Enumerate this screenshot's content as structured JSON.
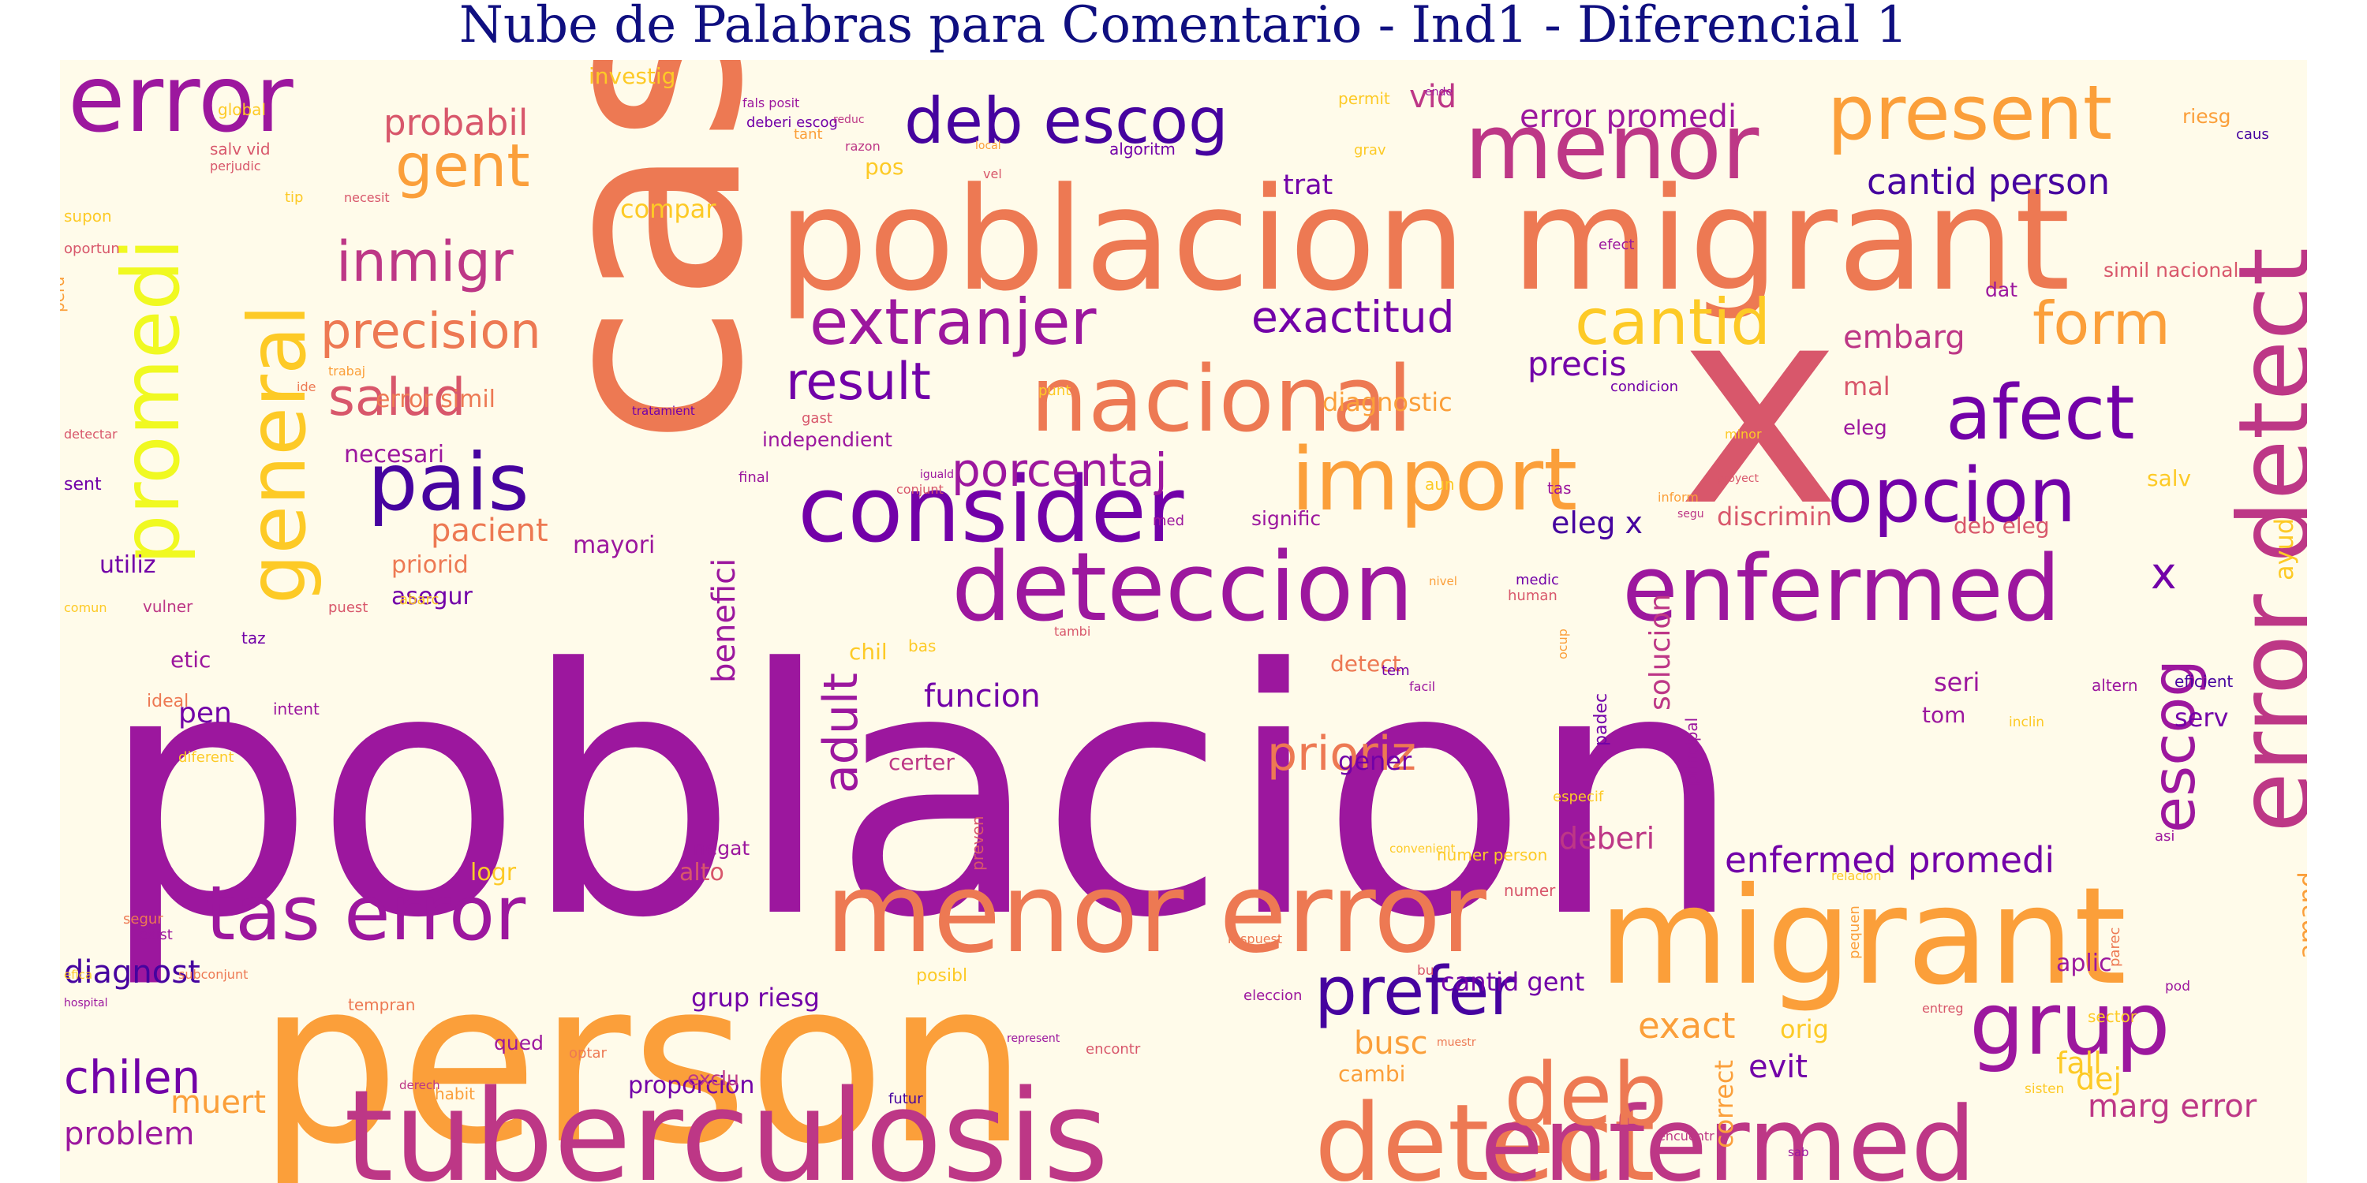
{
  "title": "Nube de Palabras para Comentario - Ind1 - Diferencial 1",
  "chart_data": {
    "type": "wordcloud",
    "palette": [
      "#0d0887",
      "#46039f",
      "#7201a8",
      "#9c179e",
      "#bd3786",
      "#d8576b",
      "#ed7953",
      "#fb9f3a",
      "#fdca26",
      "#f0f921"
    ],
    "background": "#fffbea",
    "words": [
      {
        "text": "poblacion",
        "color": "#9c179e"
      },
      {
        "text": "person",
        "color": "#fb9f3a"
      },
      {
        "text": "cas",
        "color": "#ed7953"
      },
      {
        "text": "poblacion migrant",
        "color": "#ed7953"
      },
      {
        "text": "x",
        "color": "#d8576b"
      },
      {
        "text": "tuberculosis",
        "color": "#bd3786"
      },
      {
        "text": "migrant",
        "color": "#fb9f3a"
      },
      {
        "text": "detect",
        "color": "#ed7953"
      },
      {
        "text": "enfermed",
        "color": "#bd3786"
      },
      {
        "text": "menor error",
        "color": "#ed7953"
      },
      {
        "text": "deteccion",
        "color": "#9c179e"
      },
      {
        "text": "enfermed",
        "color": "#9c179e"
      },
      {
        "text": "error detect",
        "color": "#bd3786"
      },
      {
        "text": "error",
        "color": "#9c179e"
      },
      {
        "text": "nacional",
        "color": "#ed7953"
      },
      {
        "text": "consider",
        "color": "#7201a8"
      },
      {
        "text": "import",
        "color": "#fb9f3a"
      },
      {
        "text": "present",
        "color": "#fb9f3a"
      },
      {
        "text": "menor",
        "color": "#bd3786"
      },
      {
        "text": "promedi",
        "color": "#f0f921"
      },
      {
        "text": "general",
        "color": "#fdca26"
      },
      {
        "text": "grup",
        "color": "#9c179e"
      },
      {
        "text": "deb",
        "color": "#ed7953"
      },
      {
        "text": "tas error",
        "color": "#9c179e"
      },
      {
        "text": "afect",
        "color": "#7201a8"
      },
      {
        "text": "opcion",
        "color": "#7201a8"
      },
      {
        "text": "pais",
        "color": "#46039f"
      },
      {
        "text": "prefer",
        "color": "#46039f"
      },
      {
        "text": "deb escog",
        "color": "#46039f"
      },
      {
        "text": "extranjer",
        "color": "#9c179e"
      },
      {
        "text": "escog",
        "color": "#9c179e"
      },
      {
        "text": "cantid",
        "color": "#fdca26"
      },
      {
        "text": "gent",
        "color": "#fb9f3a"
      },
      {
        "text": "form",
        "color": "#fb9f3a"
      },
      {
        "text": "result",
        "color": "#7201a8"
      },
      {
        "text": "inmigr",
        "color": "#bd3786"
      },
      {
        "text": "salud",
        "color": "#d8576b"
      },
      {
        "text": "precision",
        "color": "#ed7953"
      },
      {
        "text": "exactitud",
        "color": "#7201a8"
      },
      {
        "text": "porcentaj",
        "color": "#9c179e"
      },
      {
        "text": "prioriz",
        "color": "#ed7953"
      },
      {
        "text": "adult",
        "color": "#9c179e"
      },
      {
        "text": "chilen",
        "color": "#7201a8"
      },
      {
        "text": "x",
        "color": "#7201a8"
      },
      {
        "text": "exact",
        "color": "#fb9f3a"
      },
      {
        "text": "diagnost",
        "color": "#46039f"
      },
      {
        "text": "probabil",
        "color": "#d8576b"
      },
      {
        "text": "error promedi",
        "color": "#9c179e"
      },
      {
        "text": "cantid person",
        "color": "#46039f"
      },
      {
        "text": "enfermed promedi",
        "color": "#7201a8"
      },
      {
        "text": "precis",
        "color": "#7201a8"
      },
      {
        "text": "embarg",
        "color": "#bd3786"
      },
      {
        "text": "benefici",
        "color": "#9c179e"
      },
      {
        "text": "funcion",
        "color": "#7201a8"
      },
      {
        "text": "pacient",
        "color": "#ed7953"
      },
      {
        "text": "problem",
        "color": "#9c179e"
      },
      {
        "text": "muert",
        "color": "#fb9f3a"
      },
      {
        "text": "proporcion",
        "color": "#7201a8"
      },
      {
        "text": "busc",
        "color": "#fb9f3a"
      },
      {
        "text": "evit",
        "color": "#7201a8"
      },
      {
        "text": "fall",
        "color": "#fdca26"
      },
      {
        "text": "marg error",
        "color": "#bd3786"
      },
      {
        "text": "dej",
        "color": "#fdca26"
      },
      {
        "text": "grup riesg",
        "color": "#7201a8"
      },
      {
        "text": "cantid gent",
        "color": "#7201a8"
      },
      {
        "text": "deberi",
        "color": "#bd3786"
      },
      {
        "text": "solucion",
        "color": "#bd3786"
      },
      {
        "text": "eleg x",
        "color": "#46039f"
      },
      {
        "text": "discrimin",
        "color": "#d8576b"
      },
      {
        "text": "deb eleg",
        "color": "#d8576b"
      },
      {
        "text": "amand",
        "color": "#fb9f3a"
      },
      {
        "text": "ayud",
        "color": "#fdca26"
      },
      {
        "text": "vid",
        "color": "#bd3786"
      },
      {
        "text": "trat",
        "color": "#7201a8"
      },
      {
        "text": "diagnostic",
        "color": "#fb9f3a"
      },
      {
        "text": "error simil",
        "color": "#ed7953"
      },
      {
        "text": "necesari",
        "color": "#9c179e"
      },
      {
        "text": "mayori",
        "color": "#9c179e"
      },
      {
        "text": "priorid",
        "color": "#ed7953"
      },
      {
        "text": "asegur",
        "color": "#7201a8"
      },
      {
        "text": "utiliz",
        "color": "#7201a8"
      },
      {
        "text": "etic",
        "color": "#9c179e"
      },
      {
        "text": "pen",
        "color": "#7201a8"
      },
      {
        "text": "logr",
        "color": "#fdca26"
      },
      {
        "text": "alto",
        "color": "#d8576b"
      },
      {
        "text": "negat",
        "color": "#9c179e"
      },
      {
        "text": "gener",
        "color": "#7201a8"
      },
      {
        "text": "certer",
        "color": "#bd3786"
      },
      {
        "text": "detect",
        "color": "#ed7953"
      },
      {
        "text": "chil",
        "color": "#fdca26"
      },
      {
        "text": "aplic",
        "color": "#9c179e"
      },
      {
        "text": "seri",
        "color": "#9c179e"
      },
      {
        "text": "tom",
        "color": "#9c179e"
      },
      {
        "text": "serv",
        "color": "#7201a8"
      },
      {
        "text": "cambi",
        "color": "#fb9f3a"
      },
      {
        "text": "correct",
        "color": "#fb9f3a"
      },
      {
        "text": "orig",
        "color": "#fdca26"
      },
      {
        "text": "mal",
        "color": "#d8576b"
      },
      {
        "text": "salv",
        "color": "#fdca26"
      },
      {
        "text": "eleg",
        "color": "#9c179e"
      },
      {
        "text": "compar",
        "color": "#fdca26"
      },
      {
        "text": "investig",
        "color": "#fdca26"
      },
      {
        "text": "pos",
        "color": "#fdca26"
      },
      {
        "text": "riesg",
        "color": "#fb9f3a"
      },
      {
        "text": "simil nacional",
        "color": "#d8576b"
      },
      {
        "text": "dat",
        "color": "#9c179e"
      },
      {
        "text": "independient",
        "color": "#9c179e"
      },
      {
        "text": "condicion",
        "color": "#7201a8"
      },
      {
        "text": "algoritm",
        "color": "#7201a8"
      },
      {
        "text": "permit",
        "color": "#fdca26"
      },
      {
        "text": "grav",
        "color": "#fdca26"
      },
      {
        "text": "signific",
        "color": "#9c179e"
      },
      {
        "text": "efect",
        "color": "#9c179e"
      },
      {
        "text": "salv vid",
        "color": "#d8576b"
      },
      {
        "text": "perjudic",
        "color": "#d8576b"
      },
      {
        "text": "vulner",
        "color": "#bd3786"
      },
      {
        "text": "comun",
        "color": "#fdca26"
      },
      {
        "text": "sent",
        "color": "#7201a8"
      },
      {
        "text": "puest",
        "color": "#d8576b"
      },
      {
        "text": "abarc",
        "color": "#fdca26"
      },
      {
        "text": "taz",
        "color": "#7201a8"
      },
      {
        "text": "padec",
        "color": "#7201a8"
      },
      {
        "text": "principal",
        "color": "#9c179e"
      },
      {
        "text": "human",
        "color": "#d8576b"
      },
      {
        "text": "eficient",
        "color": "#46039f"
      },
      {
        "text": "altern",
        "color": "#9c179e"
      },
      {
        "text": "numer person",
        "color": "#fdca26"
      },
      {
        "text": "especif",
        "color": "#fdca26"
      },
      {
        "text": "tratamient",
        "color": "#7201a8"
      },
      {
        "text": "gast",
        "color": "#d8576b"
      },
      {
        "text": "perd",
        "color": "#fb9f3a"
      },
      {
        "text": "deberi escog",
        "color": "#7201a8"
      },
      {
        "text": "fals posit",
        "color": "#9c179e"
      },
      {
        "text": "caus",
        "color": "#46039f"
      },
      {
        "text": "ende",
        "color": "#9c179e"
      },
      {
        "text": "asi",
        "color": "#9c179e"
      },
      {
        "text": "ocup",
        "color": "#fb9f3a"
      },
      {
        "text": "medic",
        "color": "#7201a8"
      },
      {
        "text": "nivel",
        "color": "#fb9f3a"
      },
      {
        "text": "final",
        "color": "#9c179e"
      },
      {
        "text": "conjunt",
        "color": "#d8576b"
      },
      {
        "text": "iguald",
        "color": "#9c179e"
      },
      {
        "text": "aun",
        "color": "#fdca26"
      },
      {
        "text": "tas",
        "color": "#9c179e"
      },
      {
        "text": "segu",
        "color": "#bd3786"
      },
      {
        "text": "minor",
        "color": "#fdca26"
      },
      {
        "text": "proyect",
        "color": "#d8576b"
      },
      {
        "text": "inform",
        "color": "#fb9f3a"
      },
      {
        "text": "ideal",
        "color": "#ed7953"
      },
      {
        "text": "intent",
        "color": "#9c179e"
      },
      {
        "text": "diferent",
        "color": "#fdca26"
      },
      {
        "text": "segur",
        "color": "#ed7953"
      },
      {
        "text": "exist",
        "color": "#9c179e"
      },
      {
        "text": "subconjunt",
        "color": "#ed7953"
      },
      {
        "text": "hospital",
        "color": "#9c179e"
      },
      {
        "text": "derech",
        "color": "#bd3786"
      },
      {
        "text": "habit",
        "color": "#fb9f3a"
      },
      {
        "text": "qued",
        "color": "#9c179e"
      },
      {
        "text": "exclu",
        "color": "#bd3786"
      },
      {
        "text": "futur",
        "color": "#46039f"
      },
      {
        "text": "optar",
        "color": "#ed7953"
      },
      {
        "text": "encontr",
        "color": "#d8576b"
      },
      {
        "text": "represent",
        "color": "#9c179e"
      },
      {
        "text": "respuest",
        "color": "#ed7953"
      },
      {
        "text": "eleccion",
        "color": "#9c179e"
      },
      {
        "text": "sector",
        "color": "#fdca26"
      },
      {
        "text": "sisten",
        "color": "#fdca26"
      },
      {
        "text": "pod",
        "color": "#9c179e"
      },
      {
        "text": "parec",
        "color": "#ed7953"
      },
      {
        "text": "muestr",
        "color": "#ed7953"
      },
      {
        "text": "entreg",
        "color": "#d8576b"
      },
      {
        "text": "sab",
        "color": "#9c179e"
      },
      {
        "text": "relacion",
        "color": "#fdca26"
      },
      {
        "text": "numer",
        "color": "#d8576b"
      },
      {
        "text": "global",
        "color": "#fdca26"
      },
      {
        "text": "tip",
        "color": "#fdca26"
      },
      {
        "text": "necesit",
        "color": "#d8576b"
      },
      {
        "text": "supon",
        "color": "#fdca26"
      },
      {
        "text": "reduc",
        "color": "#bd3786"
      },
      {
        "text": "tant",
        "color": "#fb9f3a"
      },
      {
        "text": "razon",
        "color": "#bd3786"
      },
      {
        "text": "local",
        "color": "#fb9f3a"
      },
      {
        "text": "vel",
        "color": "#d8576b"
      },
      {
        "text": "convenient",
        "color": "#fdca26"
      },
      {
        "text": "oportun",
        "color": "#d8576b"
      },
      {
        "text": "trabaj",
        "color": "#fb9f3a"
      },
      {
        "text": "ide",
        "color": "#ed7953"
      },
      {
        "text": "detectar",
        "color": "#d8576b"
      },
      {
        "text": "punt",
        "color": "#fdca26"
      },
      {
        "text": "tambi",
        "color": "#d8576b"
      },
      {
        "text": "facil",
        "color": "#9c179e"
      },
      {
        "text": "med",
        "color": "#9c179e"
      },
      {
        "text": "pequen",
        "color": "#fb9f3a"
      },
      {
        "text": "tempran",
        "color": "#ed7953"
      },
      {
        "text": "preven",
        "color": "#d8576b"
      },
      {
        "text": "bas",
        "color": "#fdca26"
      },
      {
        "text": "inclin",
        "color": "#fdca26"
      },
      {
        "text": "posibl",
        "color": "#fdca26"
      },
      {
        "text": "tem",
        "color": "#7201a8"
      },
      {
        "text": "encuentr",
        "color": "#bd3786"
      },
      {
        "text": "bu",
        "color": "#d8576b"
      },
      {
        "text": "efica",
        "color": "#fdca26"
      }
    ]
  }
}
